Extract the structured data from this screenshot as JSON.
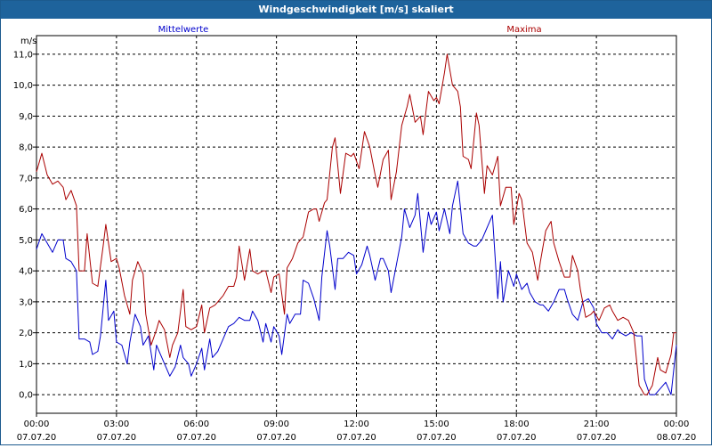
{
  "window": {
    "title": "Windgeschwindigkeit [m/s] skaliert"
  },
  "chart_data": {
    "type": "line",
    "title": "Windgeschwindigkeit [m/s] skaliert",
    "ylabel": "m/s",
    "xlabel": "",
    "ylim": [
      -0.6,
      11.6
    ],
    "yticks": [
      0.0,
      1.0,
      2.0,
      3.0,
      4.0,
      5.0,
      6.0,
      7.0,
      8.0,
      9.0,
      10.0,
      11.0
    ],
    "ytick_labels": [
      "0,0",
      "1,0",
      "2,0",
      "3,0",
      "4,0",
      "5,0",
      "6,0",
      "7,0",
      "8,0",
      "9,0",
      "10,0",
      "11,0"
    ],
    "xlim": [
      0,
      24
    ],
    "xticks": [
      {
        "x": 0,
        "time": "00:00",
        "date": "07.07.20"
      },
      {
        "x": 3,
        "time": "03:00",
        "date": "07.07.20"
      },
      {
        "x": 6,
        "time": "06:00",
        "date": "07.07.20"
      },
      {
        "x": 9,
        "time": "09:00",
        "date": "07.07.20"
      },
      {
        "x": 12,
        "time": "12:00",
        "date": "07.07.20"
      },
      {
        "x": 15,
        "time": "15:00",
        "date": "07.07.20"
      },
      {
        "x": 18,
        "time": "18:00",
        "date": "07.07.20"
      },
      {
        "x": 21,
        "time": "21:00",
        "date": "07.07.20"
      },
      {
        "x": 24,
        "time": "00:00",
        "date": "08.07.20"
      }
    ],
    "grid": true,
    "series": [
      {
        "name": "Mittelwerte",
        "color": "#0000cc",
        "points": [
          [
            0.0,
            4.7
          ],
          [
            0.2,
            5.2
          ],
          [
            0.4,
            4.9
          ],
          [
            0.6,
            4.6
          ],
          [
            0.8,
            5.0
          ],
          [
            1.0,
            5.0
          ],
          [
            1.1,
            4.4
          ],
          [
            1.3,
            4.3
          ],
          [
            1.5,
            4.0
          ],
          [
            1.6,
            1.8
          ],
          [
            1.8,
            1.8
          ],
          [
            2.0,
            1.7
          ],
          [
            2.1,
            1.3
          ],
          [
            2.3,
            1.4
          ],
          [
            2.4,
            1.9
          ],
          [
            2.6,
            3.7
          ],
          [
            2.7,
            2.4
          ],
          [
            2.9,
            2.7
          ],
          [
            3.0,
            1.7
          ],
          [
            3.2,
            1.6
          ],
          [
            3.4,
            1.0
          ],
          [
            3.5,
            1.7
          ],
          [
            3.7,
            2.6
          ],
          [
            3.9,
            2.2
          ],
          [
            4.0,
            1.6
          ],
          [
            4.2,
            1.9
          ],
          [
            4.4,
            0.8
          ],
          [
            4.5,
            1.6
          ],
          [
            4.7,
            1.2
          ],
          [
            4.9,
            0.8
          ],
          [
            5.0,
            0.6
          ],
          [
            5.2,
            0.9
          ],
          [
            5.4,
            1.6
          ],
          [
            5.5,
            1.2
          ],
          [
            5.7,
            1.0
          ],
          [
            5.8,
            0.6
          ],
          [
            6.0,
            1.0
          ],
          [
            6.2,
            1.5
          ],
          [
            6.3,
            0.8
          ],
          [
            6.5,
            1.8
          ],
          [
            6.6,
            1.2
          ],
          [
            6.8,
            1.4
          ],
          [
            7.0,
            1.8
          ],
          [
            7.2,
            2.2
          ],
          [
            7.4,
            2.3
          ],
          [
            7.6,
            2.5
          ],
          [
            7.8,
            2.4
          ],
          [
            8.0,
            2.4
          ],
          [
            8.1,
            2.7
          ],
          [
            8.3,
            2.4
          ],
          [
            8.5,
            1.7
          ],
          [
            8.6,
            2.3
          ],
          [
            8.8,
            1.7
          ],
          [
            8.9,
            2.2
          ],
          [
            9.1,
            1.9
          ],
          [
            9.2,
            1.3
          ],
          [
            9.4,
            2.6
          ],
          [
            9.5,
            2.3
          ],
          [
            9.7,
            2.6
          ],
          [
            9.9,
            2.6
          ],
          [
            10.0,
            3.7
          ],
          [
            10.2,
            3.6
          ],
          [
            10.4,
            3.1
          ],
          [
            10.6,
            2.4
          ],
          [
            10.7,
            3.8
          ],
          [
            10.9,
            5.3
          ],
          [
            11.0,
            4.8
          ],
          [
            11.2,
            3.4
          ],
          [
            11.3,
            4.4
          ],
          [
            11.5,
            4.4
          ],
          [
            11.7,
            4.6
          ],
          [
            11.9,
            4.5
          ],
          [
            12.0,
            3.9
          ],
          [
            12.2,
            4.2
          ],
          [
            12.4,
            4.8
          ],
          [
            12.5,
            4.5
          ],
          [
            12.7,
            3.7
          ],
          [
            12.9,
            4.4
          ],
          [
            13.0,
            4.4
          ],
          [
            13.2,
            4.0
          ],
          [
            13.3,
            3.3
          ],
          [
            13.5,
            4.2
          ],
          [
            13.7,
            5.1
          ],
          [
            13.8,
            6.0
          ],
          [
            14.0,
            5.4
          ],
          [
            14.2,
            5.8
          ],
          [
            14.3,
            6.5
          ],
          [
            14.5,
            4.6
          ],
          [
            14.7,
            5.9
          ],
          [
            14.8,
            5.5
          ],
          [
            15.0,
            5.9
          ],
          [
            15.1,
            5.3
          ],
          [
            15.3,
            6.0
          ],
          [
            15.5,
            5.2
          ],
          [
            15.6,
            6.1
          ],
          [
            15.8,
            6.9
          ],
          [
            16.0,
            5.2
          ],
          [
            16.2,
            4.9
          ],
          [
            16.4,
            4.8
          ],
          [
            16.5,
            4.8
          ],
          [
            16.7,
            5.0
          ],
          [
            16.9,
            5.4
          ],
          [
            17.1,
            5.8
          ],
          [
            17.3,
            3.1
          ],
          [
            17.4,
            4.3
          ],
          [
            17.5,
            3.0
          ],
          [
            17.7,
            4.0
          ],
          [
            17.9,
            3.5
          ],
          [
            18.0,
            3.9
          ],
          [
            18.2,
            3.4
          ],
          [
            18.4,
            3.6
          ],
          [
            18.5,
            3.3
          ],
          [
            18.7,
            3.0
          ],
          [
            18.9,
            2.9
          ],
          [
            19.0,
            2.9
          ],
          [
            19.2,
            2.7
          ],
          [
            19.4,
            3.0
          ],
          [
            19.6,
            3.4
          ],
          [
            19.8,
            3.4
          ],
          [
            19.9,
            3.1
          ],
          [
            20.1,
            2.6
          ],
          [
            20.3,
            2.4
          ],
          [
            20.5,
            3.0
          ],
          [
            20.7,
            3.1
          ],
          [
            20.9,
            2.8
          ],
          [
            21.0,
            2.3
          ],
          [
            21.2,
            2.0
          ],
          [
            21.4,
            2.0
          ],
          [
            21.6,
            1.8
          ],
          [
            21.8,
            2.1
          ],
          [
            21.9,
            2.0
          ],
          [
            22.1,
            1.9
          ],
          [
            22.3,
            2.0
          ],
          [
            22.5,
            1.9
          ],
          [
            22.7,
            1.9
          ],
          [
            22.8,
            0.5
          ],
          [
            23.0,
            0.0
          ],
          [
            23.2,
            0.0
          ],
          [
            23.4,
            0.2
          ],
          [
            23.6,
            0.4
          ],
          [
            23.8,
            0.0
          ],
          [
            24.0,
            1.6
          ]
        ]
      },
      {
        "name": "Maxima",
        "color": "#aa0000",
        "points": [
          [
            0.0,
            7.2
          ],
          [
            0.2,
            7.8
          ],
          [
            0.4,
            7.1
          ],
          [
            0.6,
            6.8
          ],
          [
            0.8,
            6.9
          ],
          [
            1.0,
            6.7
          ],
          [
            1.1,
            6.3
          ],
          [
            1.3,
            6.6
          ],
          [
            1.5,
            6.1
          ],
          [
            1.6,
            4.0
          ],
          [
            1.8,
            4.0
          ],
          [
            1.9,
            5.2
          ],
          [
            2.1,
            3.6
          ],
          [
            2.3,
            3.5
          ],
          [
            2.5,
            4.8
          ],
          [
            2.6,
            5.5
          ],
          [
            2.8,
            4.3
          ],
          [
            3.0,
            4.4
          ],
          [
            3.1,
            4.1
          ],
          [
            3.3,
            3.2
          ],
          [
            3.5,
            2.6
          ],
          [
            3.6,
            3.7
          ],
          [
            3.8,
            4.3
          ],
          [
            4.0,
            3.9
          ],
          [
            4.1,
            2.6
          ],
          [
            4.3,
            1.6
          ],
          [
            4.5,
            2.1
          ],
          [
            4.6,
            2.4
          ],
          [
            4.8,
            2.1
          ],
          [
            5.0,
            1.2
          ],
          [
            5.1,
            1.6
          ],
          [
            5.3,
            2.0
          ],
          [
            5.5,
            3.4
          ],
          [
            5.6,
            2.2
          ],
          [
            5.8,
            2.1
          ],
          [
            6.0,
            2.2
          ],
          [
            6.2,
            2.9
          ],
          [
            6.3,
            2.0
          ],
          [
            6.5,
            2.8
          ],
          [
            6.7,
            2.9
          ],
          [
            6.9,
            3.1
          ],
          [
            7.0,
            3.2
          ],
          [
            7.2,
            3.5
          ],
          [
            7.4,
            3.5
          ],
          [
            7.5,
            3.8
          ],
          [
            7.6,
            4.8
          ],
          [
            7.8,
            3.7
          ],
          [
            8.0,
            4.7
          ],
          [
            8.1,
            4.0
          ],
          [
            8.3,
            3.9
          ],
          [
            8.5,
            4.0
          ],
          [
            8.6,
            4.0
          ],
          [
            8.8,
            3.3
          ],
          [
            8.9,
            3.8
          ],
          [
            9.1,
            3.9
          ],
          [
            9.3,
            2.6
          ],
          [
            9.4,
            4.1
          ],
          [
            9.6,
            4.4
          ],
          [
            9.8,
            4.9
          ],
          [
            10.0,
            5.1
          ],
          [
            10.2,
            5.9
          ],
          [
            10.4,
            6.0
          ],
          [
            10.5,
            6.0
          ],
          [
            10.6,
            5.6
          ],
          [
            10.8,
            6.2
          ],
          [
            10.9,
            6.3
          ],
          [
            11.1,
            8.0
          ],
          [
            11.2,
            8.3
          ],
          [
            11.4,
            6.5
          ],
          [
            11.6,
            7.8
          ],
          [
            11.8,
            7.7
          ],
          [
            11.9,
            7.8
          ],
          [
            12.1,
            7.3
          ],
          [
            12.3,
            8.5
          ],
          [
            12.5,
            8.0
          ],
          [
            12.7,
            7.1
          ],
          [
            12.8,
            6.7
          ],
          [
            13.0,
            7.6
          ],
          [
            13.2,
            7.9
          ],
          [
            13.3,
            6.3
          ],
          [
            13.5,
            7.2
          ],
          [
            13.7,
            8.7
          ],
          [
            13.9,
            9.3
          ],
          [
            14.0,
            9.7
          ],
          [
            14.2,
            8.8
          ],
          [
            14.4,
            9.0
          ],
          [
            14.5,
            8.4
          ],
          [
            14.7,
            9.8
          ],
          [
            14.9,
            9.5
          ],
          [
            15.0,
            9.6
          ],
          [
            15.1,
            9.4
          ],
          [
            15.3,
            10.4
          ],
          [
            15.4,
            11.0
          ],
          [
            15.5,
            10.5
          ],
          [
            15.6,
            10.0
          ],
          [
            15.8,
            9.8
          ],
          [
            15.9,
            9.3
          ],
          [
            16.0,
            7.7
          ],
          [
            16.2,
            7.6
          ],
          [
            16.3,
            7.3
          ],
          [
            16.5,
            9.1
          ],
          [
            16.6,
            8.7
          ],
          [
            16.8,
            6.5
          ],
          [
            16.9,
            7.4
          ],
          [
            17.1,
            7.1
          ],
          [
            17.3,
            7.7
          ],
          [
            17.4,
            6.1
          ],
          [
            17.6,
            6.7
          ],
          [
            17.8,
            6.7
          ],
          [
            17.9,
            5.5
          ],
          [
            18.1,
            6.5
          ],
          [
            18.2,
            6.3
          ],
          [
            18.4,
            4.9
          ],
          [
            18.6,
            4.6
          ],
          [
            18.8,
            3.7
          ],
          [
            18.9,
            4.3
          ],
          [
            19.1,
            5.3
          ],
          [
            19.3,
            5.6
          ],
          [
            19.4,
            4.9
          ],
          [
            19.6,
            4.3
          ],
          [
            19.8,
            3.8
          ],
          [
            20.0,
            3.8
          ],
          [
            20.1,
            4.5
          ],
          [
            20.3,
            4.0
          ],
          [
            20.4,
            3.4
          ],
          [
            20.6,
            2.5
          ],
          [
            20.8,
            2.6
          ],
          [
            20.9,
            2.7
          ],
          [
            21.1,
            2.4
          ],
          [
            21.3,
            2.8
          ],
          [
            21.5,
            2.9
          ],
          [
            21.6,
            2.7
          ],
          [
            21.8,
            2.4
          ],
          [
            22.0,
            2.5
          ],
          [
            22.2,
            2.4
          ],
          [
            22.4,
            2.0
          ],
          [
            22.6,
            0.3
          ],
          [
            22.8,
            0.0
          ],
          [
            22.9,
            0.0
          ],
          [
            23.1,
            0.3
          ],
          [
            23.3,
            1.2
          ],
          [
            23.4,
            0.8
          ],
          [
            23.6,
            0.7
          ],
          [
            23.8,
            1.3
          ],
          [
            23.9,
            2.0
          ],
          [
            24.0,
            2.0
          ]
        ]
      }
    ]
  }
}
